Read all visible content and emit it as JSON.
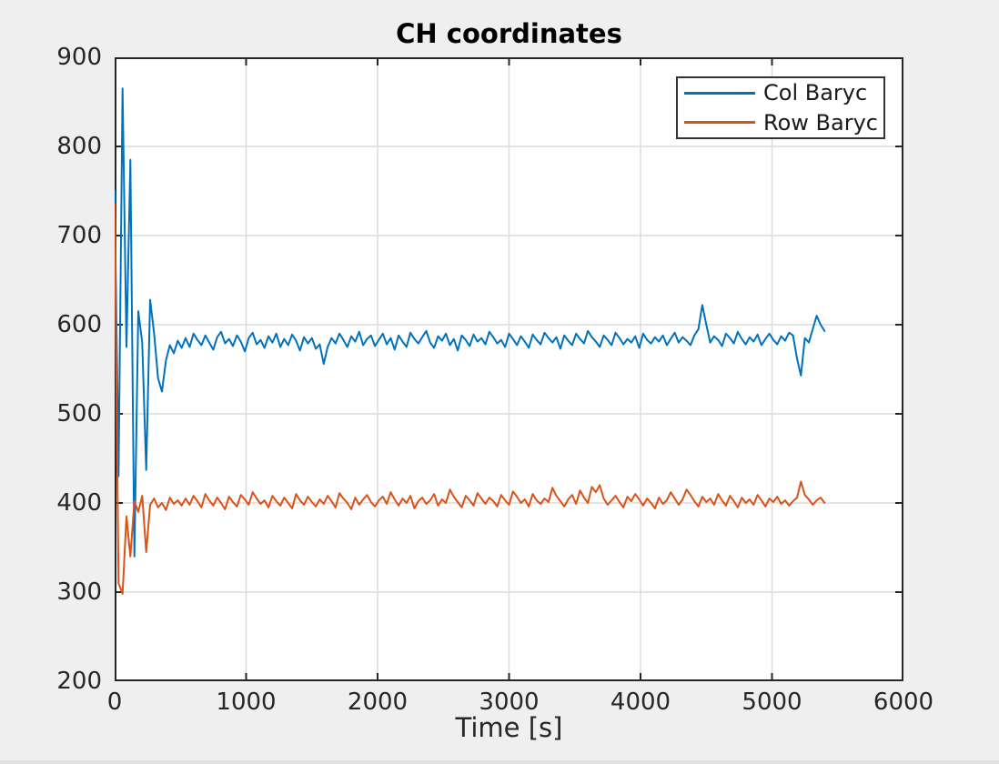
{
  "figure": {
    "background": "#efefef"
  },
  "chart_data": {
    "type": "line",
    "title": "CH coordinates",
    "xlabel": "Time [s]",
    "ylabel": "",
    "xlim": [
      0,
      6000
    ],
    "ylim": [
      200,
      900
    ],
    "xticks": [
      0,
      1000,
      2000,
      3000,
      4000,
      5000,
      6000
    ],
    "yticks": [
      200,
      300,
      400,
      500,
      600,
      700,
      800,
      900
    ],
    "grid": true,
    "legend_position": "top-right",
    "colors": {
      "axis": "#262626",
      "grid": "#dbdbdb",
      "plot_bg": "#ffffff",
      "figure_bg": "#efefef"
    },
    "x0": 0,
    "dt": 30,
    "series": [
      {
        "name": "Col Baryc",
        "color": "#0072BD",
        "values": [
          750,
          430,
          865,
          575,
          785,
          340,
          615,
          580,
          437,
          628,
          590,
          540,
          525,
          560,
          577,
          568,
          582,
          574,
          585,
          575,
          590,
          583,
          577,
          588,
          580,
          572,
          586,
          592,
          579,
          584,
          576,
          588,
          581,
          570,
          585,
          591,
          578,
          583,
          574,
          587,
          580,
          590,
          575,
          584,
          577,
          589,
          582,
          571,
          586,
          579,
          585,
          573,
          578,
          556,
          575,
          585,
          579,
          590,
          583,
          575,
          587,
          581,
          592,
          577,
          584,
          588,
          576,
          583,
          590,
          578,
          585,
          572,
          588,
          581,
          575,
          591,
          584,
          579,
          586,
          593,
          580,
          574,
          587,
          582,
          590,
          577,
          584,
          571,
          588,
          583,
          576,
          589,
          581,
          585,
          578,
          592,
          586,
          579,
          583,
          575,
          590,
          584,
          577,
          587,
          581,
          574,
          589,
          583,
          578,
          591,
          585,
          580,
          586,
          573,
          588,
          582,
          577,
          590,
          584,
          579,
          593,
          586,
          581,
          575,
          588,
          583,
          577,
          591,
          585,
          578,
          584,
          580,
          587,
          574,
          590,
          583,
          579,
          586,
          581,
          588,
          577,
          584,
          591,
          580,
          586,
          582,
          577,
          588,
          595,
          622,
          600,
          580,
          587,
          583,
          576,
          590,
          585,
          579,
          592,
          584,
          578,
          586,
          581,
          589,
          577,
          584,
          590,
          583,
          578,
          587,
          582,
          591,
          588,
          562,
          543,
          585,
          580,
          595,
          610,
          600,
          593
        ]
      },
      {
        "name": "Row Baryc",
        "color": "#D95319",
        "values": [
          735,
          310,
          298,
          385,
          340,
          402,
          390,
          408,
          345,
          398,
          405,
          395,
          400,
          392,
          406,
          399,
          403,
          397,
          405,
          398,
          408,
          402,
          395,
          410,
          403,
          397,
          406,
          400,
          393,
          407,
          401,
          396,
          409,
          404,
          398,
          412,
          405,
          399,
          403,
          395,
          408,
          402,
          397,
          406,
          400,
          394,
          410,
          403,
          398,
          407,
          401,
          396,
          404,
          399,
          408,
          402,
          395,
          411,
          405,
          400,
          393,
          406,
          398,
          404,
          409,
          401,
          396,
          403,
          407,
          399,
          412,
          404,
          397,
          405,
          400,
          408,
          394,
          402,
          406,
          399,
          403,
          410,
          397,
          404,
          400,
          415,
          407,
          401,
          395,
          408,
          403,
          397,
          411,
          405,
          399,
          406,
          402,
          396,
          409,
          403,
          398,
          413,
          407,
          400,
          404,
          396,
          410,
          403,
          399,
          405,
          401,
          417,
          408,
          402,
          396,
          404,
          409,
          399,
          414,
          406,
          400,
          418,
          412,
          420,
          405,
          398,
          403,
          408,
          401,
          395,
          407,
          402,
          410,
          404,
          397,
          405,
          400,
          394,
          406,
          399,
          403,
          412,
          405,
          398,
          404,
          415,
          409,
          402,
          396,
          407,
          401,
          405,
          398,
          410,
          403,
          397,
          408,
          402,
          395,
          406,
          400,
          404,
          398,
          409,
          403,
          396,
          405,
          401,
          407,
          399,
          403,
          397,
          402,
          406,
          424,
          409,
          404,
          398,
          403,
          406,
          400
        ]
      }
    ]
  }
}
